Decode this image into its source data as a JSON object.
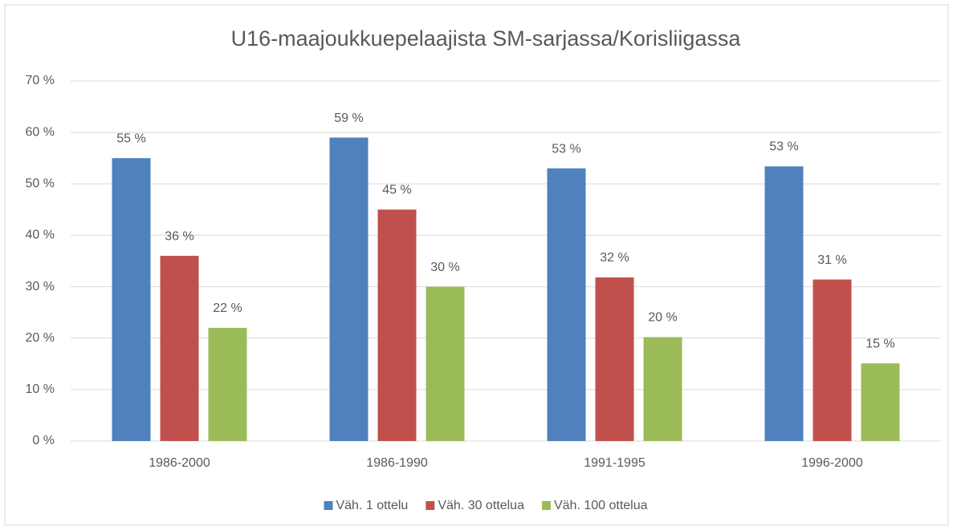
{
  "chart_data": {
    "type": "bar",
    "title": "U16-maajoukkuepelaajista SM-sarjassa/Korisliigassa",
    "categories": [
      "1986-2000",
      "1986-1990",
      "1991-1995",
      "1996-2000"
    ],
    "series": [
      {
        "name": "Väh. 1 ottelu",
        "color": "#4f81bd",
        "values": [
          55,
          59,
          53,
          53.4
        ],
        "value_labels": [
          "55 %",
          "59 %",
          "53 %",
          "53 %"
        ]
      },
      {
        "name": "Väh. 30 ottelua",
        "color": "#c0504d",
        "values": [
          36,
          45,
          31.8,
          31.4
        ],
        "value_labels": [
          "36 %",
          "45 %",
          "32 %",
          "31 %"
        ]
      },
      {
        "name": "Väh. 100 ottelua",
        "color": "#9bbb59",
        "values": [
          22,
          30,
          20.2,
          15.1
        ],
        "value_labels": [
          "22 %",
          "30 %",
          "20 %",
          "15 %"
        ]
      }
    ],
    "ylim": [
      0,
      70
    ],
    "yticks": [
      {
        "value": 0,
        "label": "0 %"
      },
      {
        "value": 10,
        "label": "10 %"
      },
      {
        "value": 20,
        "label": "20 %"
      },
      {
        "value": 30,
        "label": "30 %"
      },
      {
        "value": 40,
        "label": "40 %"
      },
      {
        "value": 50,
        "label": "50 %"
      },
      {
        "value": 60,
        "label": "60 %"
      },
      {
        "value": 70,
        "label": "70 %"
      }
    ],
    "grid": true,
    "legend": "bottom"
  }
}
